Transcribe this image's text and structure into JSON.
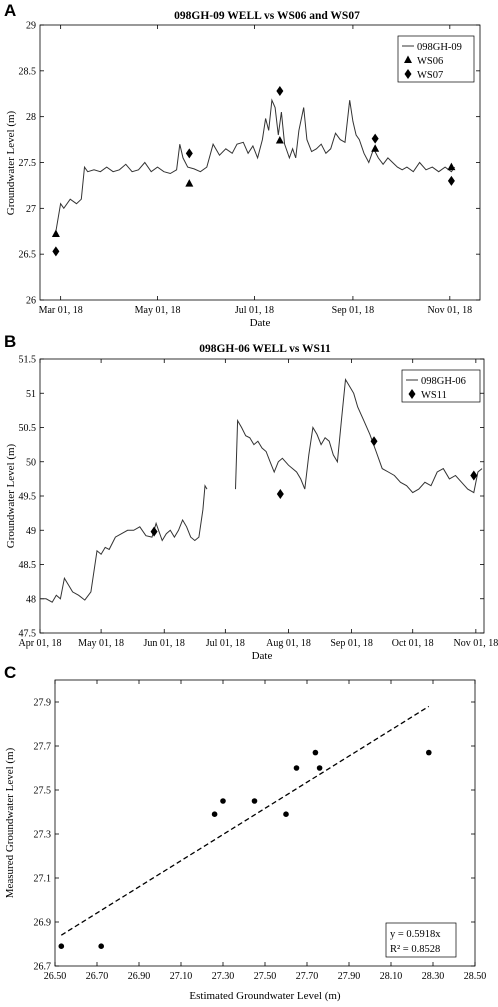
{
  "chart_data": [
    {
      "panel": "A",
      "type": "line",
      "title": "098GH-09 WELL vs WS06 and WS07",
      "xlabel": "Date",
      "ylabel": "Groundwater Level (m)",
      "x_axis": "date",
      "xlim": [
        "2018-02-16",
        "2018-11-20"
      ],
      "ylim": [
        26,
        29
      ],
      "xticks": [
        "2018-03-01",
        "2018-05-01",
        "2018-07-01",
        "2018-09-01",
        "2018-11-01"
      ],
      "xtick_labels": [
        "Mar 01, 18",
        "May 01, 18",
        "Jul 01, 18",
        "Sep 01, 18",
        "Nov 01, 18"
      ],
      "yticks": [
        26,
        26.5,
        27,
        27.5,
        28,
        28.5,
        29
      ],
      "ytick_labels": [
        "26",
        "26.5",
        "27",
        "27.5",
        "28",
        "28.5",
        "29"
      ],
      "grid": false,
      "legend_position": "top-right",
      "series": [
        {
          "name": "098GH-09",
          "type": "line",
          "color": "#333333",
          "x": [
            "2018-02-26",
            "2018-03-01",
            "2018-03-03",
            "2018-03-07",
            "2018-03-11",
            "2018-03-14",
            "2018-03-16",
            "2018-03-18",
            "2018-03-22",
            "2018-03-26",
            "2018-03-30",
            "2018-04-03",
            "2018-04-07",
            "2018-04-11",
            "2018-04-15",
            "2018-04-19",
            "2018-04-23",
            "2018-04-27",
            "2018-05-01",
            "2018-05-05",
            "2018-05-09",
            "2018-05-13",
            "2018-05-15",
            "2018-05-17",
            "2018-05-20",
            "2018-05-24",
            "2018-05-28",
            "2018-06-01",
            "2018-06-05",
            "2018-06-09",
            "2018-06-13",
            "2018-06-17",
            "2018-06-20",
            "2018-06-24",
            "2018-06-27",
            "2018-06-30",
            "2018-07-03",
            "2018-07-06",
            "2018-07-08",
            "2018-07-10",
            "2018-07-12",
            "2018-07-14",
            "2018-07-16",
            "2018-07-18",
            "2018-07-20",
            "2018-07-23",
            "2018-07-25",
            "2018-07-27",
            "2018-07-29",
            "2018-08-01",
            "2018-08-03",
            "2018-08-06",
            "2018-08-09",
            "2018-08-12",
            "2018-08-15",
            "2018-08-18",
            "2018-08-21",
            "2018-08-24",
            "2018-08-27",
            "2018-08-30",
            "2018-09-01",
            "2018-09-03",
            "2018-09-05",
            "2018-09-08",
            "2018-09-11",
            "2018-09-14",
            "2018-09-17",
            "2018-09-20",
            "2018-09-23",
            "2018-09-26",
            "2018-09-29",
            "2018-10-02",
            "2018-10-05",
            "2018-10-09",
            "2018-10-13",
            "2018-10-17",
            "2018-10-21",
            "2018-10-25",
            "2018-10-29",
            "2018-11-02",
            "2018-11-04"
          ],
          "y": [
            26.75,
            27.05,
            27.0,
            27.1,
            27.05,
            27.1,
            27.45,
            27.4,
            27.42,
            27.4,
            27.45,
            27.4,
            27.42,
            27.48,
            27.4,
            27.42,
            27.5,
            27.4,
            27.45,
            27.4,
            27.38,
            27.42,
            27.7,
            27.55,
            27.45,
            27.43,
            27.4,
            27.45,
            27.7,
            27.58,
            27.65,
            27.6,
            27.7,
            27.72,
            27.6,
            27.68,
            27.55,
            27.75,
            27.98,
            27.85,
            28.18,
            28.1,
            27.8,
            28.05,
            27.7,
            27.55,
            27.65,
            27.55,
            27.85,
            28.1,
            27.75,
            27.62,
            27.65,
            27.7,
            27.6,
            27.65,
            27.82,
            27.75,
            27.72,
            28.18,
            27.95,
            27.8,
            27.75,
            27.6,
            27.5,
            27.65,
            27.55,
            27.48,
            27.55,
            27.5,
            27.45,
            27.42,
            27.45,
            27.4,
            27.5,
            27.42,
            27.45,
            27.4,
            27.45,
            27.4,
            27.45
          ]
        },
        {
          "name": "WS06",
          "type": "scatter",
          "marker": "triangle",
          "x": [
            "2018-02-26",
            "2018-05-21",
            "2018-07-17",
            "2018-09-15",
            "2018-11-02"
          ],
          "y": [
            26.72,
            27.27,
            27.74,
            27.65,
            27.45
          ]
        },
        {
          "name": "WS07",
          "type": "scatter",
          "marker": "diamond",
          "x": [
            "2018-02-26",
            "2018-05-21",
            "2018-07-17",
            "2018-09-15",
            "2018-11-02"
          ],
          "y": [
            26.53,
            27.6,
            28.28,
            27.76,
            27.3
          ]
        }
      ]
    },
    {
      "panel": "B",
      "type": "line",
      "title": "098GH-06 WELL vs WS11",
      "xlabel": "Date",
      "ylabel": "Groundwater Level (m)",
      "x_axis": "date",
      "xlim": [
        "2018-04-01",
        "2018-11-05"
      ],
      "ylim": [
        47.5,
        51.5
      ],
      "xticks": [
        "2018-04-01",
        "2018-05-01",
        "2018-06-01",
        "2018-07-01",
        "2018-08-01",
        "2018-09-01",
        "2018-10-01",
        "2018-11-01"
      ],
      "xtick_labels": [
        "Apr 01, 18",
        "May 01, 18",
        "Jun 01, 18",
        "Jul 01, 18",
        "Aug 01, 18",
        "Sep 01, 18",
        "Oct 01, 18",
        "Nov 01, 18"
      ],
      "yticks": [
        47.5,
        48,
        48.5,
        49,
        49.5,
        50,
        50.5,
        51,
        51.5
      ],
      "ytick_labels": [
        "47.5",
        "48",
        "48.5",
        "49",
        "49.5",
        "50",
        "50.5",
        "51",
        "51.5"
      ],
      "grid": false,
      "legend_position": "top-right",
      "series": [
        {
          "name": "098GH-06",
          "type": "line",
          "color": "#333333",
          "segments": [
            {
              "x": [
                "2018-04-01",
                "2018-04-04",
                "2018-04-07",
                "2018-04-09",
                "2018-04-11",
                "2018-04-13",
                "2018-04-15",
                "2018-04-17",
                "2018-04-20",
                "2018-04-23",
                "2018-04-26",
                "2018-04-29",
                "2018-05-01",
                "2018-05-03",
                "2018-05-05",
                "2018-05-08",
                "2018-05-11",
                "2018-05-14",
                "2018-05-17",
                "2018-05-20",
                "2018-05-23",
                "2018-05-26",
                "2018-05-28",
                "2018-05-31",
                "2018-06-02",
                "2018-06-04",
                "2018-06-06",
                "2018-06-08",
                "2018-06-10",
                "2018-06-12",
                "2018-06-14",
                "2018-06-16",
                "2018-06-18",
                "2018-06-20",
                "2018-06-21",
                "2018-06-22"
              ],
              "y": [
                48.0,
                48.0,
                47.95,
                48.05,
                48.0,
                48.3,
                48.2,
                48.1,
                48.05,
                47.98,
                48.1,
                48.7,
                48.65,
                48.75,
                48.72,
                48.9,
                48.95,
                49.0,
                49.0,
                49.05,
                48.92,
                48.9,
                49.1,
                48.85,
                48.95,
                49.0,
                48.9,
                49.0,
                49.15,
                49.05,
                48.9,
                48.85,
                48.9,
                49.3,
                49.65,
                49.6
              ]
            },
            {
              "x": [
                "2018-07-06",
                "2018-07-07",
                "2018-07-09",
                "2018-07-11",
                "2018-07-13",
                "2018-07-15",
                "2018-07-17",
                "2018-07-19",
                "2018-07-21",
                "2018-07-23",
                "2018-07-25",
                "2018-07-27",
                "2018-07-29",
                "2018-08-01",
                "2018-08-03",
                "2018-08-05",
                "2018-08-07",
                "2018-08-09",
                "2018-08-11",
                "2018-08-13",
                "2018-08-15",
                "2018-08-17",
                "2018-08-19",
                "2018-08-21",
                "2018-08-23",
                "2018-08-25",
                "2018-08-27",
                "2018-08-29",
                "2018-08-31",
                "2018-09-02",
                "2018-09-04",
                "2018-09-07",
                "2018-09-10",
                "2018-09-13",
                "2018-09-16",
                "2018-09-19",
                "2018-09-22",
                "2018-09-25",
                "2018-09-28",
                "2018-10-01",
                "2018-10-04",
                "2018-10-07",
                "2018-10-10",
                "2018-10-13",
                "2018-10-16",
                "2018-10-19",
                "2018-10-22",
                "2018-10-25",
                "2018-10-28",
                "2018-10-31",
                "2018-11-02",
                "2018-11-04"
              ],
              "y": [
                49.6,
                50.6,
                50.5,
                50.38,
                50.35,
                50.25,
                50.3,
                50.2,
                50.15,
                50.0,
                49.85,
                50.0,
                50.05,
                49.95,
                49.9,
                49.85,
                49.75,
                49.6,
                50.1,
                50.5,
                50.4,
                50.25,
                50.35,
                50.3,
                50.1,
                50.0,
                50.6,
                51.2,
                51.1,
                51.0,
                50.8,
                50.6,
                50.4,
                50.15,
                49.9,
                49.85,
                49.8,
                49.7,
                49.65,
                49.55,
                49.6,
                49.7,
                49.65,
                49.85,
                49.9,
                49.75,
                49.8,
                49.7,
                49.6,
                49.55,
                49.85,
                49.9
              ]
            }
          ]
        },
        {
          "name": "WS11",
          "type": "scatter",
          "marker": "diamond",
          "x": [
            "2018-05-27",
            "2018-07-28",
            "2018-09-12",
            "2018-10-31"
          ],
          "y": [
            48.98,
            49.53,
            50.3,
            49.8
          ]
        }
      ]
    },
    {
      "panel": "C",
      "type": "scatter",
      "xlabel": "Estimated Groundwater Level (m)",
      "ylabel": "Measured Groundwater Level (m)",
      "xlim": [
        26.5,
        28.5
      ],
      "ylim": [
        26.7,
        28.0
      ],
      "xticks": [
        26.5,
        26.7,
        26.9,
        27.1,
        27.3,
        27.5,
        27.7,
        27.9,
        28.1,
        28.3,
        28.5
      ],
      "xtick_labels": [
        "26.50",
        "26.70",
        "26.90",
        "27.10",
        "27.30",
        "27.50",
        "27.70",
        "27.90",
        "28.10",
        "28.30",
        "28.50"
      ],
      "yticks": [
        26.7,
        26.9,
        27.1,
        27.3,
        27.5,
        27.7,
        27.9
      ],
      "ytick_labels": [
        "26.7",
        "26.9",
        "27.1",
        "27.3",
        "27.5",
        "27.7",
        "27.9"
      ],
      "grid": false,
      "points": {
        "x": [
          26.53,
          26.72,
          27.26,
          27.3,
          27.45,
          27.6,
          27.65,
          27.74,
          27.76,
          28.28
        ],
        "y": [
          26.79,
          26.79,
          27.39,
          27.45,
          27.45,
          27.39,
          27.6,
          27.67,
          27.6,
          27.67
        ]
      },
      "trendline": {
        "style": "dashed",
        "x": [
          26.53,
          28.28
        ],
        "y": [
          26.84,
          27.88
        ]
      },
      "annotation": {
        "position": "bottom-right",
        "lines": [
          "y = 0.5918x",
          "R² = 0.8528"
        ]
      }
    }
  ]
}
